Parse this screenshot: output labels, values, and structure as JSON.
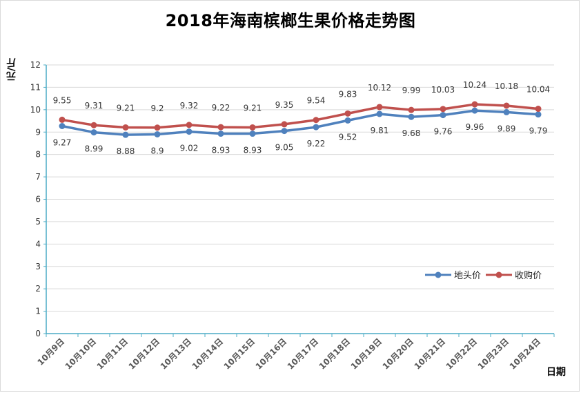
{
  "chart_data": {
    "type": "line",
    "title": "2018年海南槟榔生果价格走势图",
    "xlabel": "日期",
    "ylabel": "元/斤",
    "ylim": [
      0,
      12
    ],
    "yticks": [
      "0",
      "1",
      "2",
      "3",
      "4",
      "5",
      "6",
      "7",
      "8",
      "9",
      "10",
      "11",
      "12"
    ],
    "grid": true,
    "legend_position": "right",
    "categories": [
      "10月9日",
      "10月10日",
      "10月11日",
      "10月12日",
      "10月13日",
      "10月14日",
      "10月15日",
      "10月16日",
      "10月17日",
      "10月18日",
      "10月19日",
      "10月20日",
      "10月21日",
      "10月22日",
      "10月23日",
      "10月24日"
    ],
    "series": [
      {
        "name": "地头价",
        "color": "#4f81bd",
        "values": [
          9.27,
          8.99,
          8.88,
          8.9,
          9.02,
          8.93,
          8.93,
          9.05,
          9.22,
          9.52,
          9.81,
          9.68,
          9.76,
          9.96,
          9.89,
          9.79
        ],
        "labels": [
          "9.27",
          "8.99",
          "8.88",
          "8.9",
          "9.02",
          "8.93",
          "8.93",
          "9.05",
          "9.22",
          "9.52",
          "9.81",
          "9.68",
          "9.76",
          "9.96",
          "9.89",
          "9.79"
        ]
      },
      {
        "name": "收购价",
        "color": "#c0504d",
        "values": [
          9.55,
          9.31,
          9.21,
          9.2,
          9.32,
          9.22,
          9.21,
          9.35,
          9.54,
          9.83,
          10.12,
          9.99,
          10.03,
          10.24,
          10.18,
          10.04
        ],
        "labels": [
          "9.55",
          "9.31",
          "9.21",
          "9.2",
          "9.32",
          "9.22",
          "9.21",
          "9.35",
          "9.54",
          "9.83",
          "10.12",
          "9.99",
          "10.03",
          "10.24",
          "10.18",
          "10.04"
        ]
      }
    ]
  }
}
